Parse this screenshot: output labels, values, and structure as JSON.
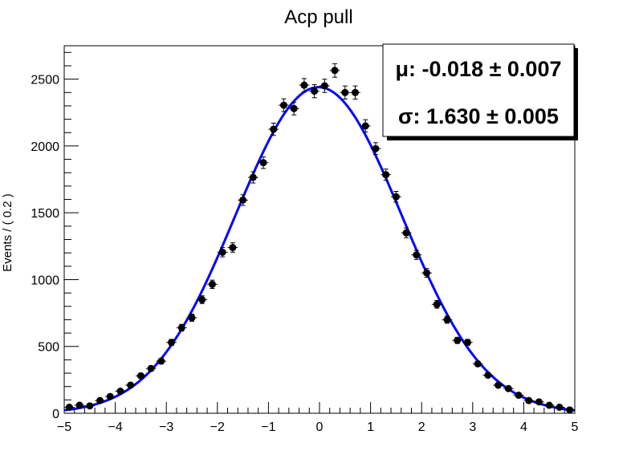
{
  "chart_data": {
    "type": "scatter",
    "title": "Acp pull",
    "xlabel": "",
    "ylabel": "Events / ( 0.2 )",
    "xlim": [
      -5,
      5
    ],
    "ylim": [
      0,
      2750
    ],
    "x_ticks": [
      -5,
      -4,
      -3,
      -2,
      -1,
      0,
      1,
      2,
      3,
      4,
      5
    ],
    "x_tick_labels": [
      "−5",
      "−4",
      "−3",
      "−2",
      "−1",
      "0",
      "1",
      "2",
      "3",
      "4",
      "5"
    ],
    "y_ticks": [
      0,
      500,
      1000,
      1500,
      2000,
      2500
    ],
    "y_tick_labels": [
      "0",
      "500",
      "1000",
      "1500",
      "2000",
      "2500"
    ],
    "bin_width": 0.2,
    "series": [
      {
        "type": "points_with_errors",
        "color": "#000000",
        "x": [
          -4.9,
          -4.7,
          -4.5,
          -4.3,
          -4.1,
          -3.9,
          -3.7,
          -3.5,
          -3.3,
          -3.1,
          -2.9,
          -2.7,
          -2.5,
          -2.3,
          -2.1,
          -1.9,
          -1.7,
          -1.5,
          -1.3,
          -1.1,
          -0.9,
          -0.7,
          -0.5,
          -0.3,
          -0.1,
          0.1,
          0.3,
          0.5,
          0.7,
          0.9,
          1.1,
          1.3,
          1.5,
          1.7,
          1.9,
          2.1,
          2.3,
          2.5,
          2.7,
          2.9,
          3.1,
          3.3,
          3.5,
          3.7,
          3.9,
          4.1,
          4.3,
          4.5,
          4.7,
          4.9
        ],
        "y": [
          45,
          60,
          55,
          95,
          125,
          165,
          210,
          280,
          335,
          390,
          530,
          640,
          715,
          850,
          965,
          1205,
          1240,
          1595,
          1765,
          1875,
          2125,
          2305,
          2280,
          2455,
          2410,
          2450,
          2565,
          2400,
          2400,
          2150,
          1980,
          1785,
          1620,
          1350,
          1185,
          1050,
          815,
          700,
          545,
          530,
          370,
          285,
          210,
          185,
          135,
          95,
          85,
          60,
          45,
          25
        ]
      },
      {
        "type": "fit_curve",
        "function": "gaussian",
        "color": "#0000ff",
        "mu": -0.018,
        "sigma": 1.63,
        "amplitude": 2440
      }
    ],
    "stat_box": {
      "mu_label": "μ: -0.018 ± 0.007",
      "sigma_label": "σ: 1.630 ± 0.005"
    }
  }
}
